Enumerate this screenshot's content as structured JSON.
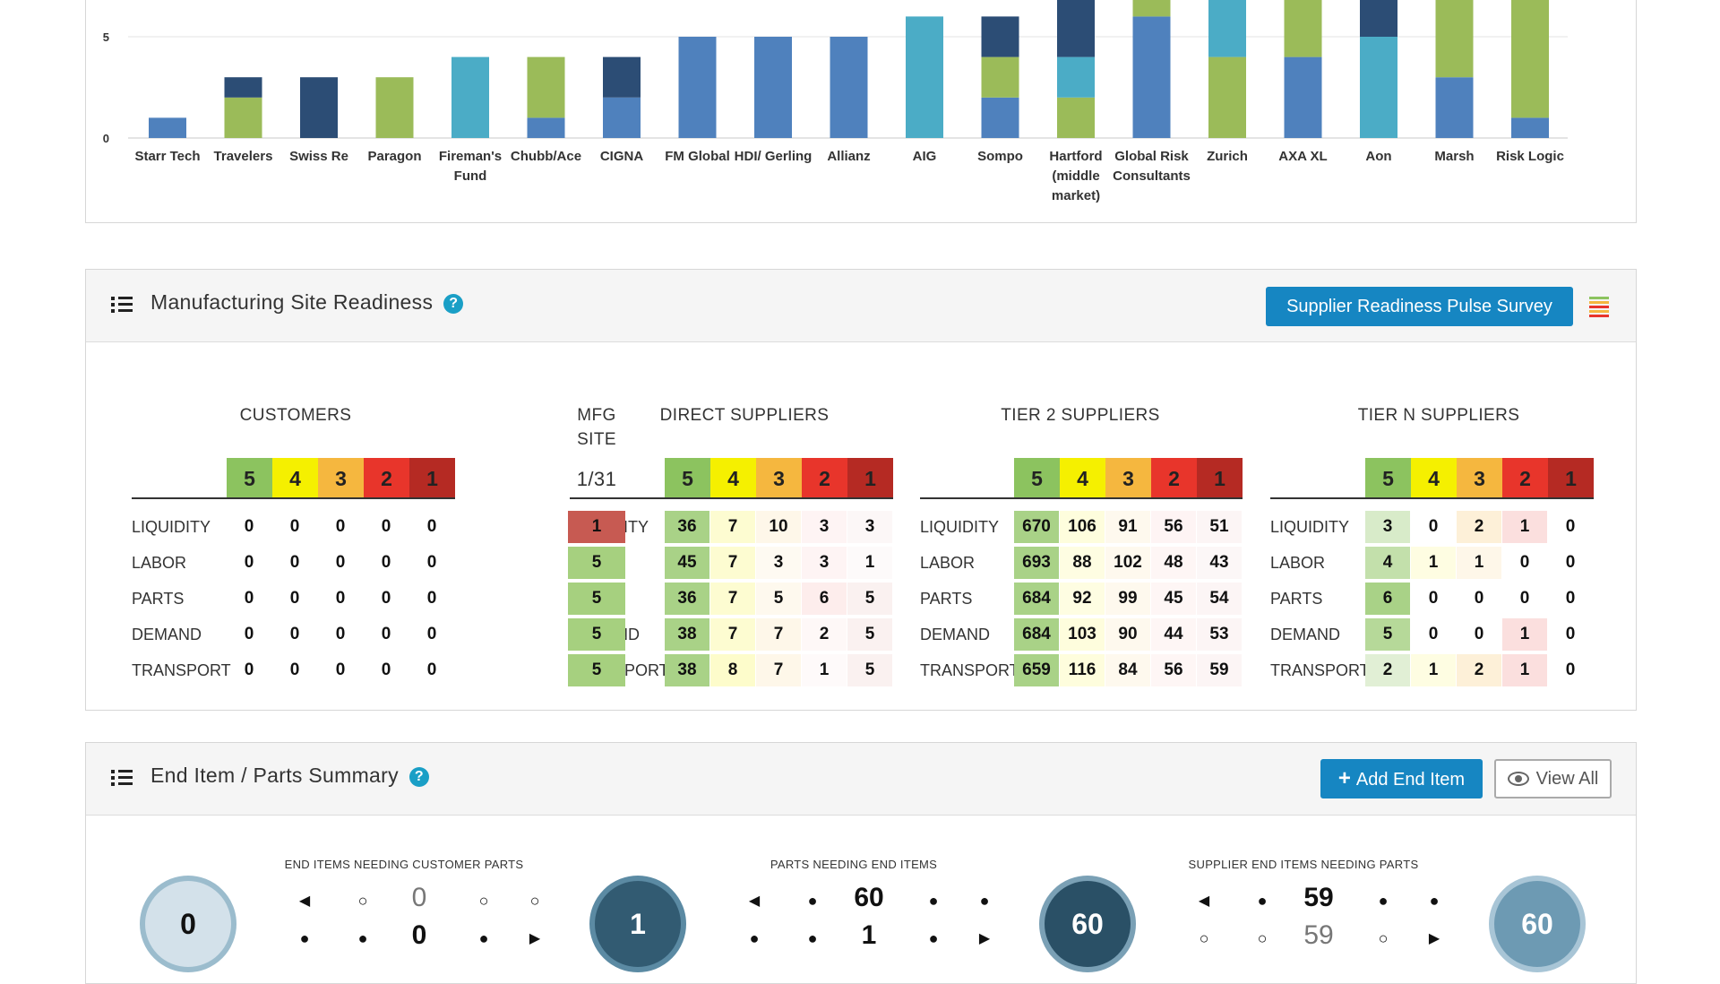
{
  "chart_data": {
    "type": "bar",
    "stacked": true,
    "y_ticks": [
      "0",
      "5"
    ],
    "ylim": [
      0,
      6
    ],
    "categories": [
      "Starr Tech",
      "Travelers",
      "Swiss Re",
      "Paragon",
      "Fireman's Fund",
      "Chubb/Ace",
      "CIGNA",
      "FM Global",
      "HDI/ Gerling",
      "Allianz",
      "AIG",
      "Sompo",
      "Hartford (middle market)",
      "Global Risk Consultants",
      "Zurich",
      "AXA XL",
      "Aon",
      "Marsh",
      "Risk Logic"
    ],
    "category_lines": [
      [
        "Starr Tech"
      ],
      [
        "Travelers"
      ],
      [
        "Swiss Re"
      ],
      [
        "Paragon"
      ],
      [
        "Fireman's",
        "Fund"
      ],
      [
        "Chubb/Ace"
      ],
      [
        "CIGNA"
      ],
      [
        "FM Global"
      ],
      [
        "HDI/ Gerling"
      ],
      [
        "Allianz"
      ],
      [
        "AIG"
      ],
      [
        "Sompo"
      ],
      [
        "Hartford",
        "(middle",
        "market)"
      ],
      [
        "Global Risk",
        "Consultants"
      ],
      [
        "Zurich"
      ],
      [
        "AXA XL"
      ],
      [
        "Aon"
      ],
      [
        "Marsh"
      ],
      [
        "Risk Logic"
      ]
    ],
    "series_colors": [
      "#4f81bd",
      "#9bbb59",
      "#4bacc6",
      "#2c4d75"
    ],
    "stacks": [
      [
        1,
        0,
        0,
        0
      ],
      [
        0,
        2,
        0,
        1
      ],
      [
        0,
        0,
        0,
        3
      ],
      [
        0,
        3,
        0,
        0
      ],
      [
        0,
        0,
        4,
        0
      ],
      [
        1,
        3,
        0,
        0
      ],
      [
        2,
        0,
        0,
        2
      ],
      [
        5,
        0,
        0,
        0
      ],
      [
        5,
        0,
        0,
        0
      ],
      [
        5,
        0,
        0,
        0
      ],
      [
        0,
        0,
        6,
        0
      ],
      [
        2,
        2,
        0,
        2
      ],
      [
        0,
        2,
        2,
        4
      ],
      [
        6,
        1,
        0,
        0
      ],
      [
        0,
        4,
        3,
        0
      ],
      [
        4,
        3,
        0,
        0
      ],
      [
        0,
        0,
        5,
        2
      ],
      [
        3,
        4,
        0,
        0
      ],
      [
        1,
        6,
        1,
        0
      ]
    ]
  },
  "readiness": {
    "title": "Manufacturing Site Readiness",
    "help": "?",
    "survey_button": "Supplier Readiness Pulse Survey",
    "scale": [
      "5",
      "4",
      "3",
      "2",
      "1"
    ],
    "scale_colors": [
      "#8cc35f",
      "#f5f000",
      "#f5b73f",
      "#e8352b",
      "#b52a23"
    ],
    "row_labels": [
      "LIQUIDITY",
      "LABOR",
      "PARTS",
      "DEMAND",
      "TRANSPORT"
    ],
    "customers": {
      "title": "CUSTOMERS",
      "rows": [
        [
          "0",
          "0",
          "0",
          "0",
          "0"
        ],
        [
          "0",
          "0",
          "0",
          "0",
          "0"
        ],
        [
          "0",
          "0",
          "0",
          "0",
          "0"
        ],
        [
          "0",
          "0",
          "0",
          "0",
          "0"
        ],
        [
          "0",
          "0",
          "0",
          "0",
          "0"
        ]
      ]
    },
    "mfg": {
      "title_line1": "MFG",
      "title_line2": "SITE",
      "count": "1/31",
      "values": [
        "1",
        "5",
        "5",
        "5",
        "5"
      ]
    },
    "direct": {
      "title": "DIRECT SUPPLIERS",
      "rows": [
        [
          "36",
          "7",
          "10",
          "3",
          "3"
        ],
        [
          "45",
          "7",
          "3",
          "3",
          "1"
        ],
        [
          "36",
          "7",
          "5",
          "6",
          "5"
        ],
        [
          "38",
          "7",
          "7",
          "2",
          "5"
        ],
        [
          "38",
          "8",
          "7",
          "1",
          "5"
        ]
      ]
    },
    "tier2": {
      "title": "TIER 2 SUPPLIERS",
      "rows": [
        [
          "670",
          "106",
          "91",
          "56",
          "51"
        ],
        [
          "693",
          "88",
          "102",
          "48",
          "43"
        ],
        [
          "684",
          "92",
          "99",
          "45",
          "54"
        ],
        [
          "684",
          "103",
          "90",
          "44",
          "53"
        ],
        [
          "659",
          "116",
          "84",
          "56",
          "59"
        ]
      ]
    },
    "tiern": {
      "title": "TIER N SUPPLIERS",
      "rows": [
        [
          "3",
          "0",
          "2",
          "1",
          "0"
        ],
        [
          "4",
          "1",
          "1",
          "0",
          "0"
        ],
        [
          "6",
          "0",
          "0",
          "0",
          "0"
        ],
        [
          "5",
          "0",
          "0",
          "1",
          "0"
        ],
        [
          "2",
          "1",
          "2",
          "1",
          "0"
        ]
      ]
    }
  },
  "summary": {
    "title": "End Item / Parts Summary",
    "help": "?",
    "add_button": "Add End Item",
    "view_button": "View All",
    "circles": [
      "0",
      "1",
      "60",
      "60"
    ],
    "groups": [
      {
        "label": "END ITEMS NEEDING CUSTOMER PARTS",
        "top": "0",
        "bottom": "0"
      },
      {
        "label": "PARTS NEEDING END ITEMS",
        "top": "60",
        "bottom": "1"
      },
      {
        "label": "SUPPLIER END ITEMS NEEDING PARTS",
        "top": "59",
        "bottom": "59"
      }
    ]
  }
}
